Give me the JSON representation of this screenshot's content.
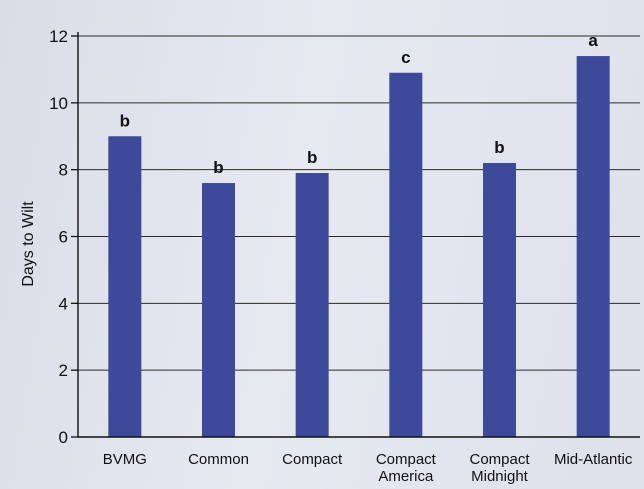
{
  "chart_data": {
    "type": "bar",
    "ylabel": "Days to Wilt",
    "xlabel": "",
    "ylim": [
      0,
      12
    ],
    "yticks": [
      0,
      2,
      4,
      6,
      8,
      10,
      12
    ],
    "grid": true,
    "categories": [
      [
        "BVMG"
      ],
      [
        "Common"
      ],
      [
        "Compact"
      ],
      [
        "Compact",
        "America"
      ],
      [
        "Compact",
        "Midnight"
      ],
      [
        "Mid-Atlantic"
      ]
    ],
    "values": [
      9.0,
      7.6,
      7.9,
      10.9,
      8.2,
      11.4
    ],
    "significance_letters": [
      "b",
      "b",
      "b",
      "c",
      "b",
      "a"
    ],
    "bar_color": "#3d4a9a"
  }
}
